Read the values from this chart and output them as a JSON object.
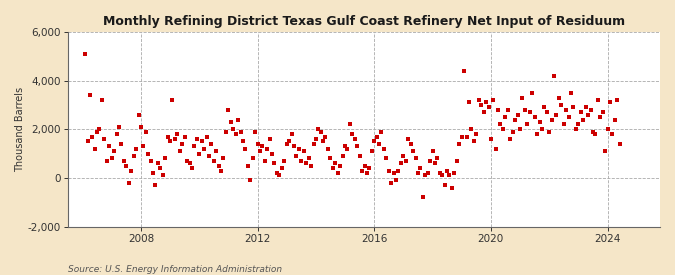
{
  "title": "Monthly Refining District Texas Gulf Coast Refinery Net Input of Residuum",
  "ylabel": "Thousand Barrels",
  "source": "Source: U.S. Energy Information Administration",
  "figure_bg": "#f5e6c8",
  "plot_bg": "#ffffff",
  "marker_color": "#cc0000",
  "ylim": [
    -2000,
    6000
  ],
  "yticks": [
    -2000,
    0,
    2000,
    4000,
    6000
  ],
  "xlim_start": 2005.5,
  "xlim_end": 2025.8,
  "xticks": [
    2008,
    2012,
    2016,
    2020,
    2024
  ],
  "data": [
    [
      2006.08,
      5100
    ],
    [
      2006.17,
      1500
    ],
    [
      2006.25,
      3400
    ],
    [
      2006.33,
      1700
    ],
    [
      2006.42,
      1200
    ],
    [
      2006.5,
      1900
    ],
    [
      2006.58,
      2000
    ],
    [
      2006.67,
      3200
    ],
    [
      2006.75,
      1600
    ],
    [
      2006.83,
      700
    ],
    [
      2006.92,
      1300
    ],
    [
      2007.0,
      800
    ],
    [
      2007.08,
      1100
    ],
    [
      2007.17,
      1800
    ],
    [
      2007.25,
      2100
    ],
    [
      2007.33,
      1400
    ],
    [
      2007.42,
      700
    ],
    [
      2007.5,
      500
    ],
    [
      2007.58,
      -200
    ],
    [
      2007.67,
      300
    ],
    [
      2007.75,
      900
    ],
    [
      2007.83,
      1200
    ],
    [
      2007.92,
      2600
    ],
    [
      2008.0,
      2100
    ],
    [
      2008.08,
      1300
    ],
    [
      2008.17,
      1900
    ],
    [
      2008.25,
      1000
    ],
    [
      2008.33,
      700
    ],
    [
      2008.42,
      200
    ],
    [
      2008.5,
      -300
    ],
    [
      2008.58,
      600
    ],
    [
      2008.67,
      400
    ],
    [
      2008.75,
      100
    ],
    [
      2008.83,
      800
    ],
    [
      2008.92,
      1700
    ],
    [
      2009.0,
      1500
    ],
    [
      2009.08,
      3200
    ],
    [
      2009.17,
      1600
    ],
    [
      2009.25,
      1800
    ],
    [
      2009.33,
      1100
    ],
    [
      2009.42,
      1400
    ],
    [
      2009.5,
      1700
    ],
    [
      2009.58,
      700
    ],
    [
      2009.67,
      600
    ],
    [
      2009.75,
      400
    ],
    [
      2009.83,
      1300
    ],
    [
      2009.92,
      1600
    ],
    [
      2010.0,
      1000
    ],
    [
      2010.08,
      1500
    ],
    [
      2010.17,
      1200
    ],
    [
      2010.25,
      1700
    ],
    [
      2010.33,
      900
    ],
    [
      2010.42,
      1400
    ],
    [
      2010.5,
      700
    ],
    [
      2010.58,
      1100
    ],
    [
      2010.67,
      500
    ],
    [
      2010.75,
      300
    ],
    [
      2010.83,
      800
    ],
    [
      2010.92,
      1900
    ],
    [
      2011.0,
      2800
    ],
    [
      2011.08,
      2300
    ],
    [
      2011.17,
      2000
    ],
    [
      2011.25,
      1800
    ],
    [
      2011.33,
      2400
    ],
    [
      2011.42,
      1900
    ],
    [
      2011.5,
      1500
    ],
    [
      2011.58,
      1200
    ],
    [
      2011.67,
      500
    ],
    [
      2011.75,
      -100
    ],
    [
      2011.83,
      800
    ],
    [
      2011.92,
      1900
    ],
    [
      2012.0,
      1400
    ],
    [
      2012.08,
      1100
    ],
    [
      2012.17,
      1300
    ],
    [
      2012.25,
      700
    ],
    [
      2012.33,
      1200
    ],
    [
      2012.42,
      1600
    ],
    [
      2012.5,
      1000
    ],
    [
      2012.58,
      600
    ],
    [
      2012.67,
      200
    ],
    [
      2012.75,
      100
    ],
    [
      2012.83,
      400
    ],
    [
      2012.92,
      700
    ],
    [
      2013.0,
      1400
    ],
    [
      2013.08,
      1500
    ],
    [
      2013.17,
      1800
    ],
    [
      2013.25,
      1300
    ],
    [
      2013.33,
      900
    ],
    [
      2013.42,
      1200
    ],
    [
      2013.5,
      700
    ],
    [
      2013.58,
      1100
    ],
    [
      2013.67,
      600
    ],
    [
      2013.75,
      800
    ],
    [
      2013.83,
      500
    ],
    [
      2013.92,
      1400
    ],
    [
      2014.0,
      1600
    ],
    [
      2014.08,
      2000
    ],
    [
      2014.17,
      1900
    ],
    [
      2014.25,
      1500
    ],
    [
      2014.33,
      1700
    ],
    [
      2014.42,
      1200
    ],
    [
      2014.5,
      800
    ],
    [
      2014.58,
      400
    ],
    [
      2014.67,
      600
    ],
    [
      2014.75,
      200
    ],
    [
      2014.83,
      500
    ],
    [
      2014.92,
      900
    ],
    [
      2015.0,
      1300
    ],
    [
      2015.08,
      1200
    ],
    [
      2015.17,
      2200
    ],
    [
      2015.25,
      1800
    ],
    [
      2015.33,
      1600
    ],
    [
      2015.42,
      1300
    ],
    [
      2015.5,
      900
    ],
    [
      2015.58,
      300
    ],
    [
      2015.67,
      500
    ],
    [
      2015.75,
      200
    ],
    [
      2015.83,
      400
    ],
    [
      2015.92,
      1100
    ],
    [
      2016.0,
      1500
    ],
    [
      2016.08,
      1700
    ],
    [
      2016.17,
      1400
    ],
    [
      2016.25,
      1900
    ],
    [
      2016.33,
      1200
    ],
    [
      2016.42,
      800
    ],
    [
      2016.5,
      300
    ],
    [
      2016.58,
      -200
    ],
    [
      2016.67,
      200
    ],
    [
      2016.75,
      -100
    ],
    [
      2016.83,
      300
    ],
    [
      2016.92,
      600
    ],
    [
      2017.0,
      900
    ],
    [
      2017.08,
      700
    ],
    [
      2017.17,
      1600
    ],
    [
      2017.25,
      1400
    ],
    [
      2017.33,
      1100
    ],
    [
      2017.42,
      800
    ],
    [
      2017.5,
      200
    ],
    [
      2017.58,
      400
    ],
    [
      2017.67,
      -800
    ],
    [
      2017.75,
      100
    ],
    [
      2017.83,
      200
    ],
    [
      2017.92,
      700
    ],
    [
      2018.0,
      1100
    ],
    [
      2018.08,
      600
    ],
    [
      2018.17,
      800
    ],
    [
      2018.25,
      200
    ],
    [
      2018.33,
      100
    ],
    [
      2018.42,
      -300
    ],
    [
      2018.5,
      300
    ],
    [
      2018.58,
      100
    ],
    [
      2018.67,
      -400
    ],
    [
      2018.75,
      200
    ],
    [
      2018.83,
      700
    ],
    [
      2018.92,
      1400
    ],
    [
      2019.0,
      1700
    ],
    [
      2019.08,
      4400
    ],
    [
      2019.17,
      1700
    ],
    [
      2019.25,
      3100
    ],
    [
      2019.33,
      2000
    ],
    [
      2019.42,
      1500
    ],
    [
      2019.5,
      1800
    ],
    [
      2019.58,
      3200
    ],
    [
      2019.67,
      3000
    ],
    [
      2019.75,
      2700
    ],
    [
      2019.83,
      3100
    ],
    [
      2019.92,
      2900
    ],
    [
      2020.0,
      1600
    ],
    [
      2020.08,
      3200
    ],
    [
      2020.17,
      1200
    ],
    [
      2020.25,
      2800
    ],
    [
      2020.33,
      2200
    ],
    [
      2020.42,
      2000
    ],
    [
      2020.5,
      2500
    ],
    [
      2020.58,
      2800
    ],
    [
      2020.67,
      1600
    ],
    [
      2020.75,
      1900
    ],
    [
      2020.83,
      2400
    ],
    [
      2020.92,
      2600
    ],
    [
      2021.0,
      2000
    ],
    [
      2021.08,
      3300
    ],
    [
      2021.17,
      2800
    ],
    [
      2021.25,
      2200
    ],
    [
      2021.33,
      2700
    ],
    [
      2021.42,
      3500
    ],
    [
      2021.5,
      2500
    ],
    [
      2021.58,
      1800
    ],
    [
      2021.67,
      2300
    ],
    [
      2021.75,
      2000
    ],
    [
      2021.83,
      2900
    ],
    [
      2021.92,
      2700
    ],
    [
      2022.0,
      1900
    ],
    [
      2022.08,
      2400
    ],
    [
      2022.17,
      4200
    ],
    [
      2022.25,
      2600
    ],
    [
      2022.33,
      3300
    ],
    [
      2022.42,
      3000
    ],
    [
      2022.5,
      2200
    ],
    [
      2022.58,
      2800
    ],
    [
      2022.67,
      2500
    ],
    [
      2022.75,
      3500
    ],
    [
      2022.83,
      2900
    ],
    [
      2022.92,
      2000
    ],
    [
      2023.0,
      2200
    ],
    [
      2023.08,
      2700
    ],
    [
      2023.17,
      2400
    ],
    [
      2023.25,
      2900
    ],
    [
      2023.33,
      2600
    ],
    [
      2023.42,
      2800
    ],
    [
      2023.5,
      1900
    ],
    [
      2023.58,
      1800
    ],
    [
      2023.67,
      3200
    ],
    [
      2023.75,
      2500
    ],
    [
      2023.83,
      2700
    ],
    [
      2023.92,
      1100
    ],
    [
      2024.0,
      2000
    ],
    [
      2024.08,
      3100
    ],
    [
      2024.17,
      1800
    ],
    [
      2024.25,
      2400
    ],
    [
      2024.33,
      3200
    ],
    [
      2024.42,
      1400
    ]
  ]
}
